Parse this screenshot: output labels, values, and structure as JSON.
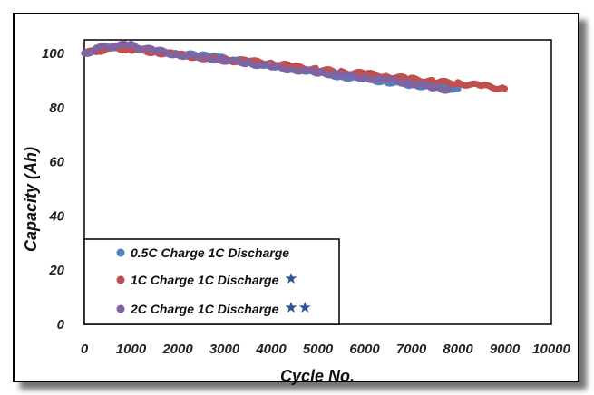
{
  "chart_data": {
    "type": "scatter",
    "xlabel": "Cycle No.",
    "ylabel": "Capacity (Ah)",
    "xlim": [
      0,
      10000
    ],
    "ylim": [
      0,
      105
    ],
    "xticks": [
      "0",
      "1000",
      "2000",
      "3000",
      "4000",
      "5000",
      "6000",
      "7000",
      "8000",
      "9000",
      "10000"
    ],
    "yticks": [
      "0",
      "20",
      "40",
      "60",
      "80",
      "100"
    ],
    "grid": false,
    "legend_position": "bottom-left",
    "series": [
      {
        "name": "0.5C Charge 1C Discharge",
        "marker_note": "",
        "color": "#4f81bd",
        "x": [
          0,
          300,
          600,
          1000,
          1500,
          2000,
          2500,
          2800,
          3000,
          3500,
          4000,
          4500,
          5000,
          5500,
          6000,
          6500,
          7000,
          7500,
          8000
        ],
        "y": [
          100,
          101.5,
          102.5,
          102,
          101,
          100,
          99,
          99.5,
          98,
          97,
          95.5,
          94.5,
          93,
          91.5,
          90.5,
          89.5,
          88.5,
          87.5,
          87
        ]
      },
      {
        "name": "1C Charge 1C Discharge",
        "marker_note": "★",
        "color": "#c0504d",
        "x": [
          0,
          300,
          600,
          1000,
          1500,
          2000,
          2500,
          3000,
          3500,
          4000,
          4500,
          5000,
          5500,
          6000,
          6500,
          7000,
          7500,
          8000,
          8500,
          9000
        ],
        "y": [
          100,
          101,
          102,
          101.5,
          100.5,
          99.5,
          98.5,
          97.5,
          97,
          96.5,
          95,
          94,
          93,
          92.5,
          91.5,
          90.5,
          89.5,
          89,
          88,
          87
        ]
      },
      {
        "name": "2C Charge 1C Discharge",
        "marker_note": "★★",
        "color": "#8064a2",
        "x": [
          0,
          300,
          600,
          1000,
          1500,
          2000,
          2500,
          3000,
          3500,
          4000,
          4500,
          5000,
          5500,
          6000,
          6500,
          7000,
          7500,
          7800
        ],
        "y": [
          100,
          102,
          103,
          103,
          101,
          99.5,
          98.5,
          97.5,
          96.5,
          95,
          94,
          93,
          92,
          91,
          90,
          89,
          87.5,
          86.5
        ]
      }
    ]
  }
}
